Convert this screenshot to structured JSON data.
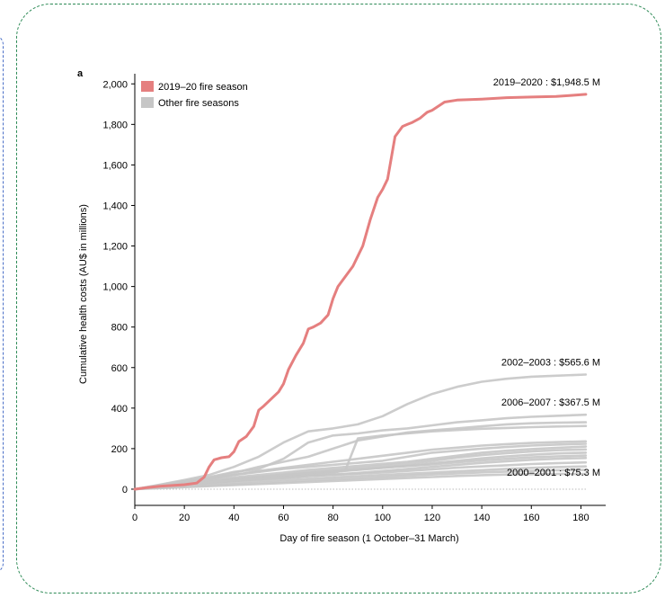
{
  "chart_data": {
    "type": "line",
    "panel_label": "a",
    "xlabel": "Day of fire season (1 October–31 March)",
    "ylabel": "Cumulative health costs (AU$ in millions)",
    "xlim": [
      0,
      190
    ],
    "ylim": [
      -80,
      2050
    ],
    "x_ticks": [
      0,
      20,
      40,
      60,
      80,
      100,
      120,
      140,
      160,
      180
    ],
    "y_ticks": [
      0,
      200,
      400,
      600,
      800,
      1000,
      1200,
      1400,
      1600,
      1800,
      2000
    ],
    "y_tick_labels": [
      "0",
      "200",
      "400",
      "600",
      "800",
      "1,000",
      "1,200",
      "1,400",
      "1,600",
      "1,800",
      "2,000"
    ],
    "legend": {
      "placement": "top-left",
      "items": [
        {
          "label": "2019–20 fire season",
          "color": "#e57f7f"
        },
        {
          "label": "Other fire seasons",
          "color": "#c6c6c6"
        }
      ]
    },
    "annotations": [
      {
        "text": "2019–2020 : $1,948.5 M",
        "x": 182,
        "y": 1948.5
      },
      {
        "text": "2002–2003 : $565.6 M",
        "x": 182,
        "y": 565.6
      },
      {
        "text": "2006–2007 : $367.5 M",
        "x": 182,
        "y": 367.5
      },
      {
        "text": "2000–2001 : $75.3 M",
        "x": 182,
        "y": 75.3
      }
    ],
    "colors": {
      "highlight": "#e57f7f",
      "other": "#c6c6c6",
      "zero_line": "#bbbbbb"
    },
    "highlight_series": {
      "name": "2019–20 fire season",
      "x": [
        0,
        5,
        10,
        15,
        20,
        25,
        28,
        30,
        32,
        35,
        38,
        40,
        42,
        45,
        48,
        50,
        52,
        55,
        58,
        60,
        62,
        65,
        68,
        70,
        72,
        75,
        78,
        80,
        82,
        85,
        88,
        90,
        92,
        95,
        98,
        100,
        102,
        105,
        108,
        110,
        112,
        115,
        118,
        120,
        125,
        130,
        140,
        150,
        160,
        170,
        176,
        182
      ],
      "y": [
        0,
        8,
        14,
        18,
        22,
        30,
        60,
        110,
        145,
        155,
        160,
        185,
        235,
        260,
        310,
        390,
        410,
        445,
        480,
        520,
        590,
        660,
        720,
        790,
        800,
        820,
        860,
        940,
        1000,
        1050,
        1100,
        1150,
        1200,
        1330,
        1440,
        1480,
        1530,
        1740,
        1790,
        1800,
        1810,
        1830,
        1860,
        1870,
        1910,
        1920,
        1925,
        1932,
        1935,
        1938,
        1943,
        1948.5
      ]
    },
    "other_series": [
      {
        "x": [
          0,
          10,
          20,
          30,
          40,
          50,
          60,
          70,
          80,
          90,
          100,
          110,
          120,
          130,
          140,
          150,
          160,
          170,
          182
        ],
        "y": [
          0,
          22,
          45,
          70,
          110,
          160,
          230,
          285,
          300,
          320,
          360,
          420,
          470,
          505,
          530,
          545,
          555,
          560,
          565.6
        ]
      },
      {
        "x": [
          0,
          10,
          20,
          30,
          40,
          50,
          60,
          70,
          80,
          90,
          100,
          110,
          120,
          130,
          140,
          150,
          160,
          170,
          182
        ],
        "y": [
          0,
          20,
          40,
          60,
          85,
          100,
          150,
          230,
          265,
          275,
          290,
          300,
          315,
          330,
          340,
          350,
          357,
          362,
          367.5
        ]
      },
      {
        "x": [
          0,
          10,
          20,
          30,
          40,
          50,
          60,
          70,
          80,
          90,
          100,
          110,
          120,
          130,
          140,
          150,
          160,
          170,
          182
        ],
        "y": [
          0,
          15,
          35,
          55,
          80,
          110,
          135,
          160,
          200,
          240,
          260,
          280,
          290,
          300,
          310,
          320,
          325,
          328,
          330
        ]
      },
      {
        "x": [
          0,
          10,
          20,
          30,
          40,
          50,
          60,
          70,
          80,
          85,
          90,
          100,
          110,
          120,
          130,
          140,
          150,
          160,
          170,
          182
        ],
        "y": [
          0,
          12,
          22,
          30,
          40,
          50,
          60,
          70,
          80,
          95,
          250,
          265,
          275,
          285,
          292,
          298,
          302,
          306,
          309,
          312
        ]
      },
      {
        "x": [
          0,
          10,
          20,
          30,
          40,
          50,
          60,
          70,
          80,
          90,
          100,
          110,
          120,
          130,
          140,
          150,
          160,
          170,
          182
        ],
        "y": [
          0,
          18,
          35,
          50,
          70,
          90,
          105,
          120,
          135,
          150,
          165,
          180,
          195,
          205,
          215,
          222,
          228,
          232,
          236
        ]
      },
      {
        "x": [
          0,
          10,
          20,
          30,
          40,
          50,
          60,
          70,
          80,
          90,
          100,
          110,
          120,
          130,
          140,
          150,
          160,
          170,
          182
        ],
        "y": [
          0,
          20,
          40,
          55,
          70,
          85,
          100,
          110,
          120,
          130,
          140,
          160,
          180,
          190,
          200,
          208,
          215,
          220,
          224
        ]
      },
      {
        "x": [
          0,
          10,
          20,
          30,
          40,
          50,
          60,
          70,
          80,
          90,
          100,
          110,
          120,
          130,
          140,
          150,
          160,
          170,
          182
        ],
        "y": [
          0,
          15,
          30,
          45,
          58,
          70,
          82,
          95,
          105,
          115,
          125,
          135,
          150,
          165,
          180,
          190,
          198,
          204,
          210
        ]
      },
      {
        "x": [
          0,
          10,
          20,
          30,
          40,
          50,
          60,
          70,
          80,
          90,
          100,
          110,
          120,
          130,
          140,
          150,
          160,
          170,
          182
        ],
        "y": [
          0,
          12,
          25,
          38,
          50,
          60,
          72,
          85,
          95,
          105,
          115,
          125,
          140,
          155,
          168,
          178,
          186,
          192,
          196
        ]
      },
      {
        "x": [
          0,
          10,
          20,
          30,
          40,
          50,
          60,
          70,
          80,
          90,
          100,
          110,
          120,
          130,
          140,
          150,
          160,
          170,
          182
        ],
        "y": [
          0,
          10,
          22,
          35,
          45,
          55,
          65,
          75,
          85,
          95,
          105,
          115,
          128,
          140,
          152,
          162,
          170,
          176,
          180
        ]
      },
      {
        "x": [
          0,
          10,
          20,
          30,
          40,
          50,
          60,
          70,
          80,
          90,
          100,
          110,
          120,
          130,
          140,
          150,
          160,
          170,
          182
        ],
        "y": [
          0,
          14,
          28,
          40,
          52,
          62,
          70,
          80,
          90,
          98,
          106,
          114,
          122,
          132,
          142,
          150,
          157,
          162,
          166
        ]
      },
      {
        "x": [
          0,
          10,
          20,
          30,
          40,
          50,
          60,
          70,
          80,
          90,
          100,
          110,
          120,
          130,
          140,
          150,
          160,
          170,
          182
        ],
        "y": [
          0,
          10,
          20,
          30,
          40,
          48,
          56,
          64,
          72,
          80,
          90,
          100,
          110,
          120,
          130,
          138,
          145,
          150,
          154
        ]
      },
      {
        "x": [
          0,
          10,
          20,
          30,
          40,
          50,
          60,
          70,
          80,
          90,
          100,
          110,
          120,
          130,
          140,
          150,
          160,
          170,
          182
        ],
        "y": [
          0,
          12,
          24,
          34,
          44,
          52,
          58,
          64,
          70,
          76,
          82,
          90,
          98,
          106,
          112,
          118,
          124,
          128,
          132
        ]
      },
      {
        "x": [
          0,
          10,
          20,
          30,
          40,
          50,
          60,
          70,
          80,
          90,
          100,
          110,
          120,
          130,
          140,
          150,
          160,
          170,
          182
        ],
        "y": [
          0,
          8,
          16,
          24,
          32,
          40,
          46,
          52,
          58,
          64,
          70,
          76,
          82,
          88,
          94,
          100,
          105,
          109,
          112
        ]
      },
      {
        "x": [
          0,
          10,
          20,
          30,
          40,
          50,
          60,
          70,
          80,
          90,
          100,
          110,
          120,
          130,
          140,
          150,
          160,
          170,
          182
        ],
        "y": [
          0,
          6,
          12,
          18,
          24,
          30,
          36,
          42,
          48,
          54,
          60,
          66,
          72,
          78,
          83,
          87,
          90,
          93,
          95
        ]
      },
      {
        "x": [
          0,
          10,
          20,
          30,
          40,
          50,
          60,
          70,
          80,
          90,
          100,
          110,
          120,
          130,
          140,
          150,
          160,
          170,
          182
        ],
        "y": [
          0,
          5,
          10,
          15,
          20,
          25,
          30,
          35,
          40,
          45,
          50,
          55,
          60,
          65,
          69,
          72,
          74,
          75,
          75.3
        ]
      }
    ]
  }
}
